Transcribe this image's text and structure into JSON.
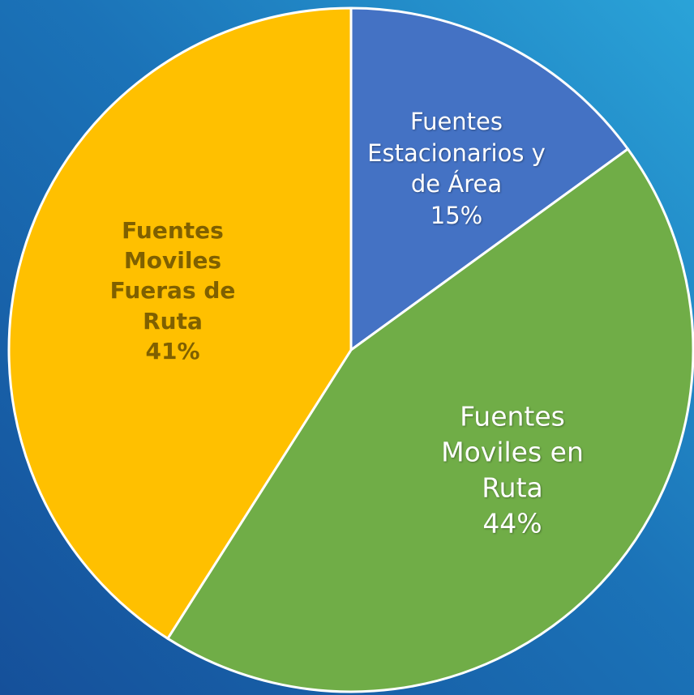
{
  "chart_data": {
    "type": "pie",
    "categories": [
      "Fuentes Estacionarios y de Área",
      "Fuentes Moviles en Ruta",
      "Fuentes Moviles Fueras de Ruta"
    ],
    "values": [
      15,
      44,
      41
    ],
    "value_labels": [
      "15%",
      "44%",
      "41%"
    ],
    "colors": [
      "#4472c4",
      "#70ad47",
      "#ffc000"
    ]
  }
}
